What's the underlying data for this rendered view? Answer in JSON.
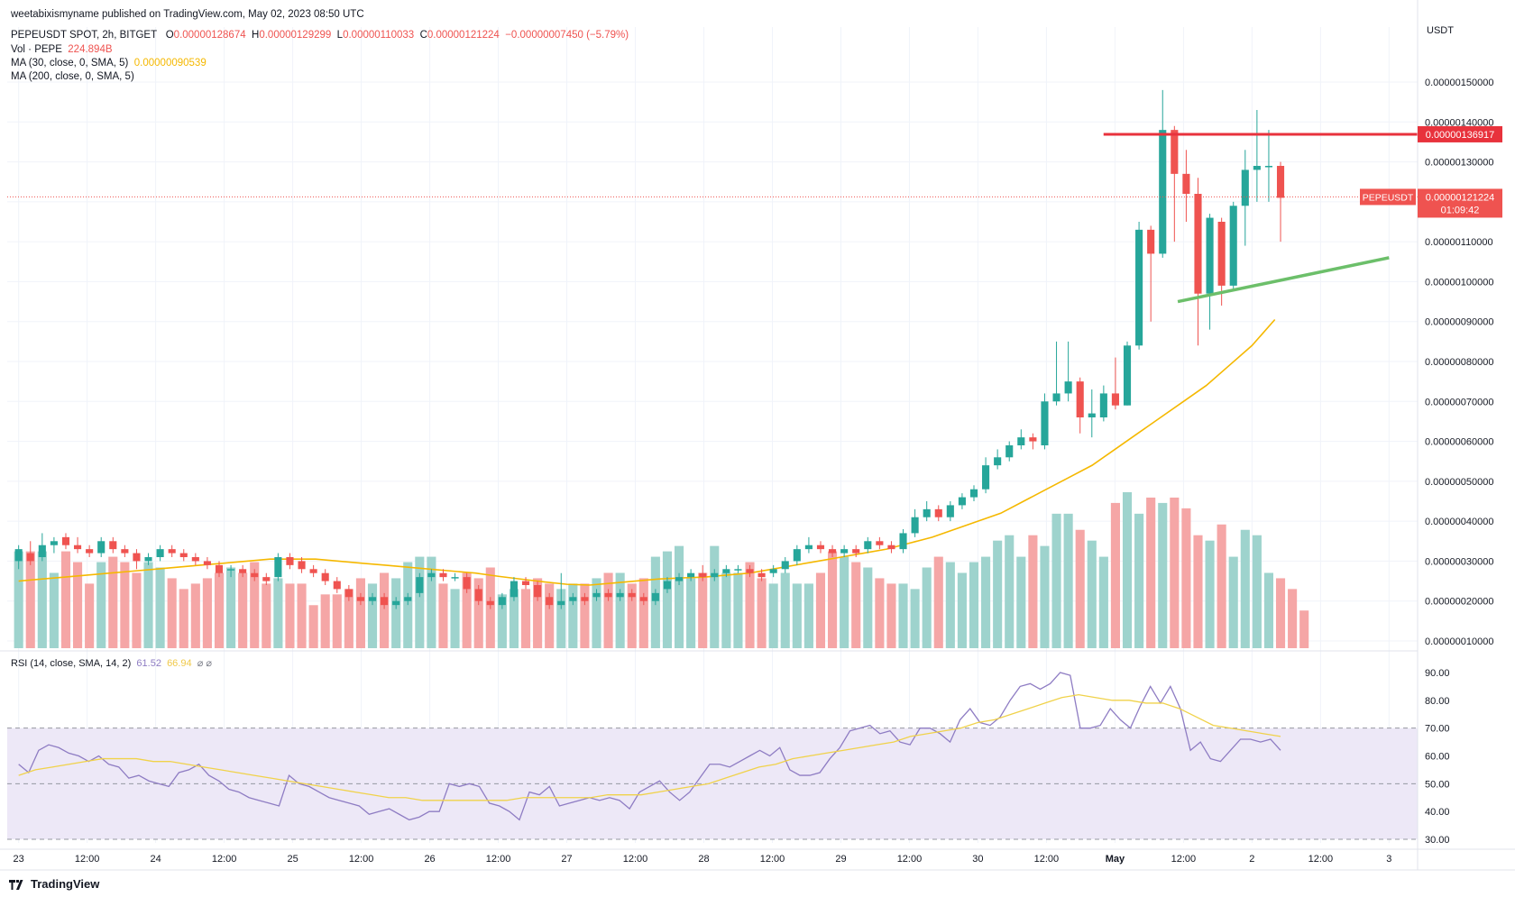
{
  "publisher_line": "weetabixismyname published on TradingView.com, May 02, 2023 08:50 UTC",
  "symbol": "PEPEUSDT SPOT, 2h, BITGET",
  "ohlc": {
    "o_label": "O",
    "o": "0.00000128674",
    "h_label": "H",
    "h": "0.00000129299",
    "l_label": "L",
    "l": "0.00000110033",
    "c_label": "C",
    "c": "0.00000121224",
    "change": "−0.00000007450 (−5.79%)"
  },
  "vol_legend": {
    "label": "Vol · PEPE",
    "value": "224.894B"
  },
  "ma30_legend": {
    "label": "MA (30, close, 0, SMA, 5)",
    "value": "0.00000090539"
  },
  "ma200_legend": {
    "label": "MA (200, close, 0, SMA, 5)"
  },
  "rsi_legend": {
    "label": "RSI (14, close, SMA, 14, 2)",
    "value1": "61.52",
    "value2": "66.94",
    "icons": "⌀ ⌀"
  },
  "price_axis_unit": "USDT",
  "current_price_tag": {
    "symbol": "PEPEUSDT",
    "price": "0.00000121224",
    "countdown": "01:09:42"
  },
  "resistance_tag": "0.00000136917",
  "brand": "TradingView",
  "colors": {
    "up": "#26a69a",
    "down": "#ef5350",
    "ma30": "#f5b800",
    "rsi": "#8e7cc3",
    "rsi_ma": "#f0d24a",
    "resistance": "#e8323c",
    "support": "#6cbf6a"
  },
  "chart_data": [
    {
      "type": "candlestick",
      "title": "PEPEUSDT SPOT, 2h, BITGET",
      "y_unit": "USDT",
      "y_ticks": [
        "0.00000010000",
        "0.00000020000",
        "0.00000030000",
        "0.00000040000",
        "0.00000050000",
        "0.00000060000",
        "0.00000070000",
        "0.00000080000",
        "0.00000090000",
        "0.00000100000",
        "0.00000110000",
        "0.00000120000",
        "0.00000130000",
        "0.00000140000",
        "0.00000150000"
      ],
      "y_tick_values": [
        0.1,
        0.2,
        0.3,
        0.4,
        0.5,
        0.6,
        0.7,
        0.8,
        0.9,
        1.0,
        1.1,
        1.2,
        1.3,
        1.4,
        1.5
      ],
      "y_scale_note": "values in 1e-6 USDT",
      "x_ticks": [
        "23",
        "12:00",
        "24",
        "12:00",
        "25",
        "12:00",
        "26",
        "12:00",
        "27",
        "12:00",
        "28",
        "12:00",
        "29",
        "12:00",
        "30",
        "12:00",
        "May",
        "12:00",
        "2",
        "12:00",
        "3"
      ],
      "x_tick_hours": [
        0,
        12,
        24,
        36,
        48,
        60,
        72,
        84,
        96,
        108,
        120,
        132,
        144,
        156,
        168,
        180,
        192,
        204,
        216,
        228,
        240
      ],
      "x_range_hours": [
        -2,
        245
      ],
      "candles": [
        [
          0.3,
          0.33,
          0.28,
          0.34
        ],
        [
          0.32,
          0.3,
          0.29,
          0.35
        ],
        [
          0.31,
          0.34,
          0.3,
          0.37
        ],
        [
          0.34,
          0.35,
          0.32,
          0.36
        ],
        [
          0.36,
          0.34,
          0.33,
          0.37
        ],
        [
          0.34,
          0.33,
          0.32,
          0.36
        ],
        [
          0.33,
          0.32,
          0.31,
          0.34
        ],
        [
          0.32,
          0.35,
          0.31,
          0.36
        ],
        [
          0.35,
          0.33,
          0.32,
          0.36
        ],
        [
          0.33,
          0.32,
          0.31,
          0.34
        ],
        [
          0.32,
          0.3,
          0.28,
          0.33
        ],
        [
          0.3,
          0.31,
          0.29,
          0.32
        ],
        [
          0.31,
          0.33,
          0.3,
          0.34
        ],
        [
          0.33,
          0.32,
          0.31,
          0.34
        ],
        [
          0.32,
          0.31,
          0.3,
          0.33
        ],
        [
          0.31,
          0.3,
          0.29,
          0.32
        ],
        [
          0.3,
          0.29,
          0.28,
          0.31
        ],
        [
          0.29,
          0.27,
          0.26,
          0.3
        ],
        [
          0.28,
          0.28,
          0.26,
          0.29
        ],
        [
          0.28,
          0.27,
          0.26,
          0.29
        ],
        [
          0.27,
          0.26,
          0.25,
          0.28
        ],
        [
          0.26,
          0.25,
          0.24,
          0.27
        ],
        [
          0.26,
          0.31,
          0.25,
          0.32
        ],
        [
          0.31,
          0.29,
          0.28,
          0.32
        ],
        [
          0.3,
          0.28,
          0.27,
          0.31
        ],
        [
          0.28,
          0.27,
          0.26,
          0.29
        ],
        [
          0.27,
          0.25,
          0.24,
          0.28
        ],
        [
          0.25,
          0.23,
          0.22,
          0.26
        ],
        [
          0.23,
          0.21,
          0.2,
          0.24
        ],
        [
          0.21,
          0.2,
          0.19,
          0.22
        ],
        [
          0.2,
          0.21,
          0.19,
          0.22
        ],
        [
          0.21,
          0.19,
          0.18,
          0.22
        ],
        [
          0.19,
          0.2,
          0.18,
          0.21
        ],
        [
          0.2,
          0.21,
          0.19,
          0.22
        ],
        [
          0.22,
          0.26,
          0.21,
          0.27
        ],
        [
          0.26,
          0.27,
          0.25,
          0.28
        ],
        [
          0.27,
          0.26,
          0.25,
          0.28
        ],
        [
          0.26,
          0.26,
          0.25,
          0.27
        ],
        [
          0.26,
          0.23,
          0.22,
          0.27
        ],
        [
          0.23,
          0.2,
          0.19,
          0.24
        ],
        [
          0.2,
          0.19,
          0.18,
          0.21
        ],
        [
          0.19,
          0.21,
          0.18,
          0.22
        ],
        [
          0.21,
          0.25,
          0.2,
          0.26
        ],
        [
          0.25,
          0.24,
          0.23,
          0.26
        ],
        [
          0.24,
          0.21,
          0.2,
          0.25
        ],
        [
          0.21,
          0.19,
          0.18,
          0.22
        ],
        [
          0.19,
          0.2,
          0.18,
          0.27
        ],
        [
          0.2,
          0.21,
          0.19,
          0.22
        ],
        [
          0.21,
          0.2,
          0.19,
          0.22
        ],
        [
          0.21,
          0.22,
          0.2,
          0.23
        ],
        [
          0.22,
          0.21,
          0.2,
          0.23
        ],
        [
          0.21,
          0.22,
          0.2,
          0.23
        ],
        [
          0.22,
          0.21,
          0.2,
          0.23
        ],
        [
          0.21,
          0.2,
          0.19,
          0.22
        ],
        [
          0.2,
          0.22,
          0.19,
          0.23
        ],
        [
          0.23,
          0.25,
          0.22,
          0.26
        ],
        [
          0.25,
          0.26,
          0.24,
          0.27
        ],
        [
          0.26,
          0.27,
          0.25,
          0.28
        ],
        [
          0.27,
          0.26,
          0.25,
          0.29
        ],
        [
          0.26,
          0.27,
          0.25,
          0.28
        ],
        [
          0.27,
          0.28,
          0.26,
          0.29
        ],
        [
          0.28,
          0.28,
          0.27,
          0.29
        ],
        [
          0.28,
          0.27,
          0.26,
          0.29
        ],
        [
          0.27,
          0.26,
          0.25,
          0.28
        ],
        [
          0.27,
          0.28,
          0.26,
          0.29
        ],
        [
          0.28,
          0.3,
          0.27,
          0.31
        ],
        [
          0.3,
          0.33,
          0.29,
          0.34
        ],
        [
          0.33,
          0.34,
          0.32,
          0.36
        ],
        [
          0.34,
          0.33,
          0.32,
          0.35
        ],
        [
          0.33,
          0.32,
          0.31,
          0.34
        ],
        [
          0.32,
          0.33,
          0.31,
          0.34
        ],
        [
          0.33,
          0.32,
          0.31,
          0.34
        ],
        [
          0.33,
          0.35,
          0.32,
          0.36
        ],
        [
          0.35,
          0.34,
          0.33,
          0.36
        ],
        [
          0.34,
          0.33,
          0.32,
          0.35
        ],
        [
          0.33,
          0.37,
          0.32,
          0.38
        ],
        [
          0.37,
          0.41,
          0.36,
          0.43
        ],
        [
          0.41,
          0.43,
          0.4,
          0.45
        ],
        [
          0.43,
          0.41,
          0.4,
          0.44
        ],
        [
          0.41,
          0.44,
          0.4,
          0.45
        ],
        [
          0.44,
          0.46,
          0.43,
          0.47
        ],
        [
          0.46,
          0.48,
          0.45,
          0.49
        ],
        [
          0.48,
          0.54,
          0.47,
          0.56
        ],
        [
          0.54,
          0.56,
          0.53,
          0.58
        ],
        [
          0.56,
          0.59,
          0.55,
          0.6
        ],
        [
          0.59,
          0.61,
          0.58,
          0.63
        ],
        [
          0.61,
          0.6,
          0.58,
          0.62
        ],
        [
          0.59,
          0.7,
          0.58,
          0.72
        ],
        [
          0.7,
          0.72,
          0.69,
          0.85
        ],
        [
          0.72,
          0.75,
          0.7,
          0.85
        ],
        [
          0.75,
          0.66,
          0.62,
          0.76
        ],
        [
          0.66,
          0.67,
          0.61,
          0.73
        ],
        [
          0.66,
          0.72,
          0.65,
          0.74
        ],
        [
          0.72,
          0.69,
          0.68,
          0.81
        ],
        [
          0.69,
          0.84,
          0.69,
          0.85
        ],
        [
          0.84,
          1.13,
          0.83,
          1.15
        ],
        [
          1.13,
          1.07,
          0.9,
          1.14
        ],
        [
          1.07,
          1.38,
          1.06,
          1.48
        ],
        [
          1.38,
          1.27,
          1.1,
          1.39
        ],
        [
          1.27,
          1.22,
          1.15,
          1.33
        ],
        [
          1.22,
          0.97,
          0.84,
          1.26
        ],
        [
          0.97,
          1.16,
          0.88,
          1.17
        ],
        [
          1.15,
          0.99,
          0.94,
          1.16
        ],
        [
          0.99,
          1.19,
          0.98,
          1.2
        ],
        [
          1.19,
          1.28,
          1.09,
          1.33
        ],
        [
          1.28,
          1.29,
          1.2,
          1.43
        ],
        [
          1.29,
          1.29,
          1.2,
          1.38
        ],
        [
          1.29,
          1.21,
          1.1,
          1.3
        ]
      ],
      "candle_order": "open, close, low, high",
      "ma30": [
        0.25,
        0.255,
        0.26,
        0.265,
        0.27,
        0.275,
        0.28,
        0.285,
        0.29,
        0.295,
        0.3,
        0.305,
        0.305,
        0.305,
        0.3,
        0.295,
        0.29,
        0.285,
        0.28,
        0.275,
        0.27,
        0.262,
        0.255,
        0.248,
        0.242,
        0.24,
        0.245,
        0.25,
        0.255,
        0.258,
        0.26,
        0.265,
        0.27,
        0.28,
        0.29,
        0.3,
        0.31,
        0.32,
        0.33,
        0.345,
        0.36,
        0.38,
        0.4,
        0.42,
        0.45,
        0.48,
        0.51,
        0.54,
        0.58,
        0.62,
        0.66,
        0.7,
        0.74,
        0.79,
        0.84,
        0.905
      ],
      "ma30_hours": [
        0,
        4,
        8,
        12,
        16,
        20,
        24,
        28,
        32,
        36,
        40,
        44,
        48,
        52,
        56,
        60,
        64,
        68,
        72,
        76,
        80,
        84,
        88,
        92,
        96,
        100,
        104,
        108,
        112,
        116,
        120,
        124,
        128,
        132,
        136,
        140,
        144,
        148,
        152,
        156,
        160,
        164,
        168,
        172,
        176,
        180,
        184,
        188,
        192,
        196,
        200,
        204,
        208,
        212,
        216,
        220
      ],
      "resistance_line": {
        "from_hour": 190,
        "to_hour": 245,
        "value": 1.36917
      },
      "support_line": {
        "from_hour": 203,
        "to_hour": 240,
        "values": [
          0.95,
          1.06
        ]
      },
      "volume": [
        18,
        18,
        18,
        14,
        18,
        16,
        12,
        16,
        17,
        16,
        14,
        16,
        15,
        13,
        11,
        12,
        13,
        14,
        15,
        14,
        16,
        12,
        13,
        12,
        12,
        8,
        10,
        10,
        11,
        13,
        12,
        14,
        13,
        16,
        17,
        17,
        12,
        11,
        14,
        13,
        15,
        10,
        11,
        11,
        13,
        12,
        11,
        12,
        12,
        13,
        14,
        14,
        12,
        13,
        17,
        18,
        19,
        13,
        14,
        19,
        14,
        14,
        16,
        13,
        12,
        14,
        12,
        12,
        14,
        18,
        17,
        16,
        15,
        13,
        12,
        12,
        11,
        15,
        17,
        16,
        14,
        16,
        17,
        20,
        21,
        17,
        21,
        19,
        25,
        25,
        22,
        20,
        17,
        27,
        29,
        25,
        28,
        27,
        28,
        26,
        21,
        20,
        23,
        17,
        22,
        21,
        14,
        13,
        11,
        7
      ],
      "rsi": [
        57,
        54,
        62,
        64,
        63,
        61,
        60,
        58,
        60,
        57,
        56,
        52,
        53,
        51,
        50,
        49,
        54,
        55,
        57,
        53,
        51,
        48,
        47,
        45,
        44,
        43,
        42,
        53,
        50,
        49,
        47,
        45,
        44,
        43,
        42,
        39,
        40,
        41,
        39,
        37,
        38,
        40,
        40,
        50,
        49,
        50,
        49,
        43,
        42,
        40,
        37,
        47,
        46,
        49,
        42,
        43,
        44,
        45,
        44,
        45,
        44,
        41,
        47,
        49,
        51,
        47,
        44,
        47,
        52,
        57,
        57,
        56,
        58,
        60,
        62,
        60,
        63,
        55,
        53,
        53,
        54,
        59,
        63,
        69,
        70,
        71,
        68,
        69,
        65,
        64,
        70,
        70,
        68,
        65,
        73,
        77,
        72,
        71,
        74,
        80,
        85,
        86,
        84,
        86,
        90,
        89,
        70,
        70,
        71,
        77,
        73,
        70,
        78,
        85,
        79,
        85,
        77,
        62,
        65,
        59,
        58,
        62,
        66,
        66,
        65,
        66,
        62
      ],
      "rsi_ma": [
        53,
        55,
        56,
        57,
        58,
        59,
        59,
        59,
        58,
        58,
        57,
        56,
        55,
        54,
        53,
        52,
        51,
        50,
        49,
        48,
        47,
        46,
        45,
        45,
        44,
        44,
        44,
        44,
        44,
        44,
        45,
        45,
        45,
        45,
        45,
        46,
        46,
        46,
        47,
        48,
        49,
        50,
        52,
        54,
        56,
        57,
        59,
        60,
        61,
        62,
        63,
        64,
        65,
        67,
        68,
        69,
        70,
        72,
        73,
        75,
        77,
        79,
        81,
        82,
        81,
        80,
        80,
        79,
        79,
        77,
        74,
        71,
        70,
        69,
        68,
        67
      ],
      "rsi_ticks": [
        "30.00",
        "40.00",
        "50.00",
        "60.00",
        "70.00",
        "80.00",
        "90.00"
      ],
      "rsi_tick_values": [
        30,
        40,
        50,
        60,
        70,
        80,
        90
      ],
      "rsi_band": [
        30,
        70
      ]
    }
  ]
}
